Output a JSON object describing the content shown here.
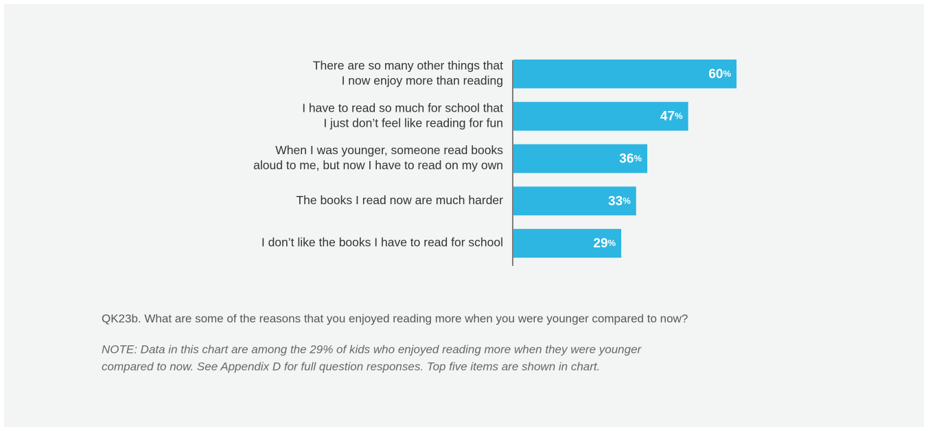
{
  "chart_data": {
    "type": "barh",
    "categories": [
      [
        "There are so many other things that",
        "I now enjoy more than reading"
      ],
      [
        "I have to read so much for school that",
        "I just don’t feel like reading for fun"
      ],
      [
        "When I was younger, someone read books",
        "aloud to me, but now I have to read on my own"
      ],
      [
        "The books I read now are much harder"
      ],
      [
        "I don’t like the books I have to read for school"
      ]
    ],
    "values": [
      60,
      47,
      36,
      33,
      29
    ],
    "value_labels": [
      "60%",
      "47%",
      "36%",
      "33%",
      "29%"
    ],
    "color": "#2db6e1",
    "xlim": [
      0,
      100
    ],
    "question": "QK23b. What are some of the reasons that you enjoyed reading more when you were younger compared to now?",
    "note": [
      "NOTE: Data in this chart are among the 29% of kids who enjoyed reading more when they were younger",
      "compared to now. See Appendix D for full question responses. Top five items are shown in chart."
    ]
  }
}
